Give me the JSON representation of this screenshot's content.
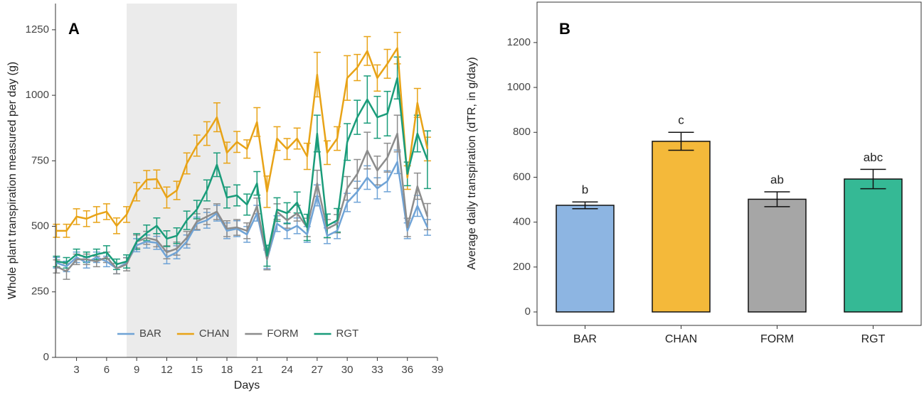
{
  "chart_data": [
    {
      "type": "line",
      "label": "A",
      "ylabel": "Whole plant transpiration measured per day (g)",
      "xlabel": "Days",
      "x": [
        1,
        2,
        3,
        4,
        5,
        6,
        7,
        8,
        9,
        10,
        11,
        12,
        13,
        14,
        15,
        16,
        17,
        18,
        19,
        20,
        21,
        22,
        23,
        24,
        25,
        26,
        27,
        28,
        29,
        30,
        31,
        32,
        33,
        34,
        35,
        36,
        37,
        38
      ],
      "shade": [
        8,
        19
      ],
      "series": [
        {
          "name": "BAR",
          "color": "#6fa3d6",
          "values": [
            361,
            347,
            382,
            361,
            382,
            366,
            339,
            361,
            428,
            442,
            437,
            382,
            401,
            442,
            510,
            523,
            550,
            483,
            491,
            469,
            550,
            374,
            510,
            483,
            502,
            469,
            618,
            464,
            483,
            591,
            632,
            686,
            645,
            672,
            746,
            483,
            578,
            496
          ],
          "errors": [
            20,
            20,
            20,
            20,
            20,
            20,
            20,
            20,
            25,
            25,
            25,
            25,
            25,
            25,
            25,
            30,
            30,
            30,
            30,
            30,
            30,
            35,
            30,
            30,
            30,
            30,
            40,
            30,
            30,
            35,
            40,
            45,
            40,
            40,
            45,
            30,
            40,
            30
          ]
        },
        {
          "name": "CHAN",
          "color": "#e8a317",
          "values": [
            483,
            483,
            537,
            529,
            545,
            556,
            502,
            545,
            632,
            678,
            680,
            610,
            637,
            740,
            808,
            854,
            916,
            781,
            822,
            795,
            898,
            632,
            835,
            795,
            835,
            767,
            1079,
            781,
            835,
            1066,
            1106,
            1169,
            1066,
            1120,
            1180,
            686,
            971,
            795
          ],
          "errors": [
            25,
            25,
            30,
            30,
            30,
            30,
            30,
            30,
            35,
            35,
            35,
            40,
            35,
            40,
            40,
            45,
            55,
            40,
            40,
            35,
            55,
            60,
            45,
            40,
            40,
            50,
            85,
            45,
            45,
            85,
            50,
            55,
            50,
            55,
            60,
            45,
            55,
            45
          ]
        },
        {
          "name": "FORM",
          "color": "#8c8c8c",
          "values": [
            347,
            328,
            374,
            374,
            366,
            382,
            339,
            355,
            442,
            456,
            447,
            401,
            415,
            456,
            518,
            537,
            556,
            491,
            496,
            483,
            578,
            374,
            556,
            523,
            550,
            496,
            664,
            491,
            510,
            645,
            700,
            789,
            713,
            762,
            854,
            496,
            653,
            537
          ],
          "errors": [
            25,
            30,
            20,
            20,
            20,
            20,
            20,
            25,
            25,
            25,
            25,
            25,
            25,
            25,
            30,
            30,
            30,
            30,
            30,
            30,
            30,
            40,
            30,
            30,
            30,
            35,
            50,
            35,
            35,
            45,
            55,
            70,
            55,
            55,
            70,
            35,
            50,
            50
          ]
        },
        {
          "name": "RGT",
          "color": "#1a9c7a",
          "values": [
            366,
            361,
            393,
            382,
            393,
            401,
            355,
            366,
            442,
            475,
            502,
            453,
            464,
            523,
            564,
            637,
            735,
            610,
            618,
            583,
            664,
            388,
            564,
            550,
            591,
            496,
            854,
            502,
            523,
            822,
            916,
            984,
            916,
            930,
            1066,
            700,
            854,
            754
          ],
          "errors": [
            20,
            20,
            20,
            20,
            20,
            25,
            20,
            25,
            30,
            30,
            30,
            30,
            30,
            35,
            35,
            40,
            45,
            40,
            40,
            40,
            45,
            40,
            45,
            40,
            40,
            50,
            70,
            45,
            45,
            70,
            65,
            90,
            80,
            85,
            80,
            45,
            70,
            110
          ]
        }
      ],
      "xlim": [
        0.9,
        39
      ],
      "xticks": [
        3,
        6,
        9,
        12,
        15,
        18,
        21,
        24,
        27,
        30,
        33,
        36,
        39
      ],
      "ylim": [
        0,
        1350
      ],
      "yticks": [
        0,
        250,
        500,
        750,
        1000,
        1250
      ]
    },
    {
      "type": "bar",
      "label": "B",
      "ylabel": "Average daily transpiration (dTR, in g/day)",
      "categories": [
        "BAR",
        "CHAN",
        "FORM",
        "RGT"
      ],
      "values": [
        475,
        760,
        502,
        592
      ],
      "errors": [
        15,
        40,
        33,
        43
      ],
      "annotations": [
        "b",
        "c",
        "ab",
        "abc"
      ],
      "colors": [
        "#8db5e2",
        "#f4b93a",
        "#a6a6a6",
        "#35b995"
      ],
      "box": true,
      "ylim": [
        -60,
        1380
      ],
      "yticks": [
        0,
        200,
        400,
        600,
        800,
        1000,
        1200
      ]
    }
  ]
}
